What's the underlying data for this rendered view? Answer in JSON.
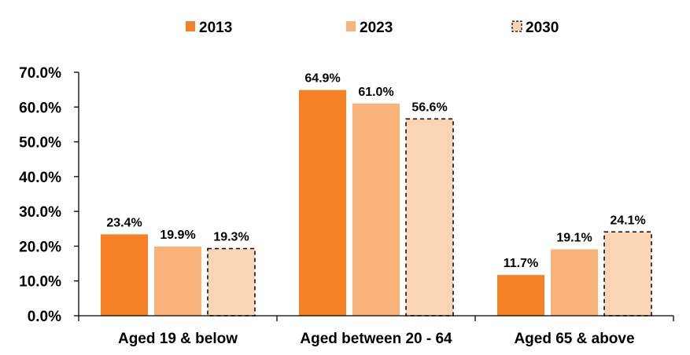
{
  "chart_data": {
    "type": "bar",
    "title": "",
    "xlabel": "",
    "ylabel": "",
    "categories": [
      "Aged 19 & below",
      "Aged between 20 - 64",
      "Aged 65 & above"
    ],
    "series": [
      {
        "name": "2013",
        "values": [
          23.4,
          64.9,
          11.7
        ],
        "labels": [
          "23.4%",
          "64.9%",
          "11.7%"
        ],
        "color": "#F58025",
        "dashed": false
      },
      {
        "name": "2023",
        "values": [
          19.9,
          61.0,
          19.1
        ],
        "labels": [
          "19.9%",
          "61.0%",
          "19.1%"
        ],
        "color": "#F8B27A",
        "dashed": false
      },
      {
        "name": "2030",
        "values": [
          19.3,
          56.6,
          24.1
        ],
        "labels": [
          "19.3%",
          "56.6%",
          "24.1%"
        ],
        "color": "#FAD5B5",
        "dashed": true
      }
    ],
    "y_ticks": [
      "0.0%",
      "10.0%",
      "20.0%",
      "30.0%",
      "40.0%",
      "50.0%",
      "60.0%",
      "70.0%"
    ],
    "ylim": [
      0,
      70
    ],
    "grid": false,
    "legend": "top-center"
  }
}
